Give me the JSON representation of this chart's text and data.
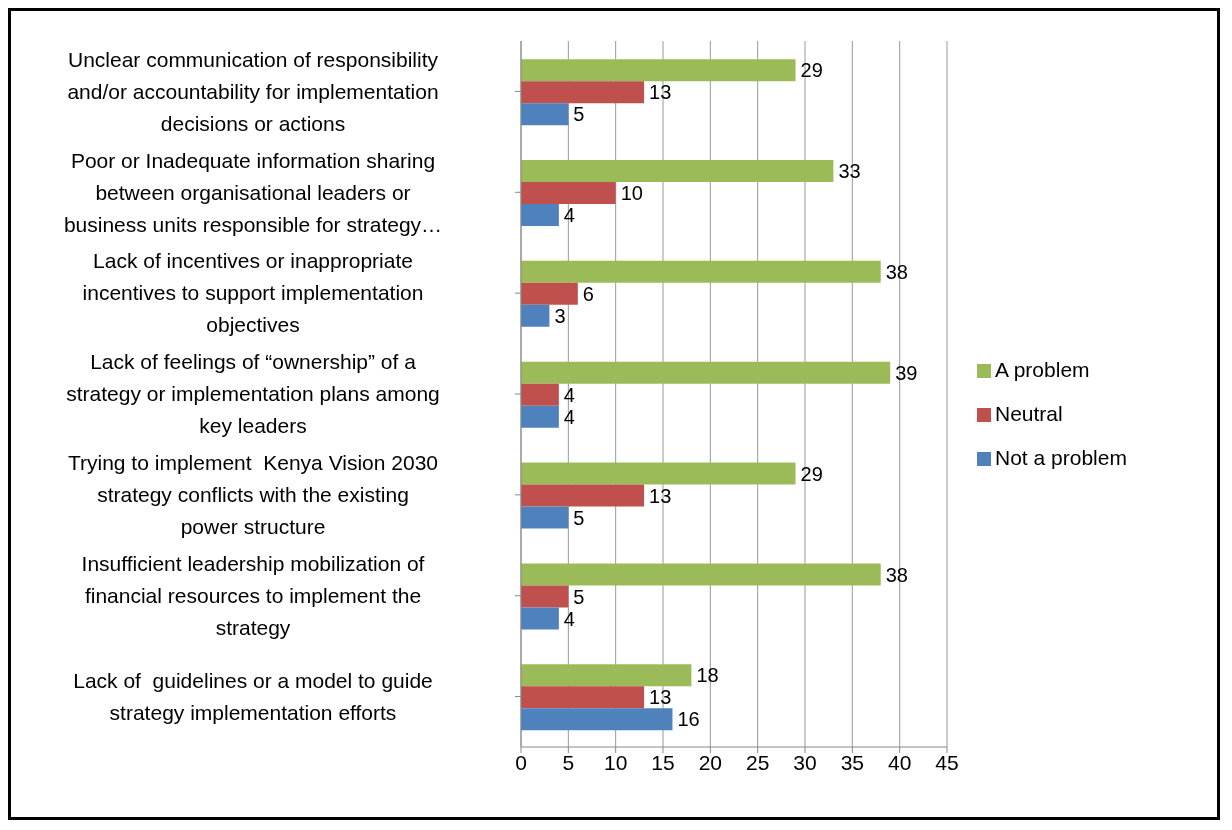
{
  "chart_data": {
    "type": "bar",
    "orientation": "horizontal",
    "categories": [
      "Unclear communication of responsibility and/or accountability for implementation decisions or actions",
      "Poor or Inadequate information sharing between organisational leaders or business units responsible for strategy…",
      "Lack of incentives or inappropriate incentives to support implementation objectives",
      "Lack of feelings of “ownership” of a strategy or implementation plans among key leaders",
      "Trying to implement  Kenya Vision 2030 strategy conflicts with the existing power structure",
      "Insufficient leadership mobilization of financial resources to implement the strategy",
      "Lack of  guidelines or a model to guide strategy implementation efforts"
    ],
    "series": [
      {
        "name": "A problem",
        "color": "#9bbb59",
        "values": [
          29,
          33,
          38,
          39,
          29,
          38,
          18
        ]
      },
      {
        "name": "Neutral",
        "color": "#c0504d",
        "values": [
          13,
          10,
          6,
          4,
          13,
          5,
          13
        ]
      },
      {
        "name": "Not a problem",
        "color": "#4f81bd",
        "values": [
          5,
          4,
          3,
          4,
          5,
          4,
          16
        ]
      }
    ],
    "xlim": [
      0,
      45
    ],
    "xticks": [
      0,
      5,
      10,
      15,
      20,
      25,
      30,
      35,
      40,
      45
    ],
    "grid": "x",
    "legend": "right",
    "data_labels": true
  }
}
